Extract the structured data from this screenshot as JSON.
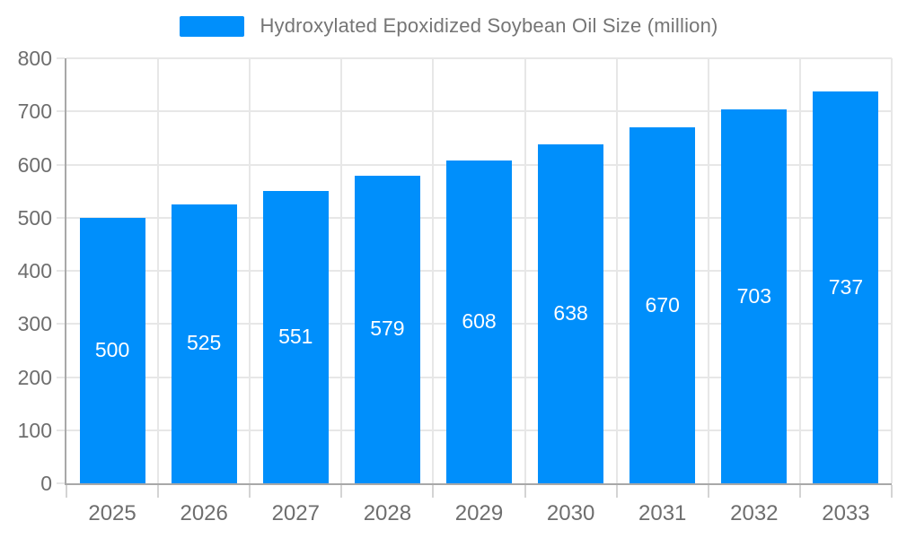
{
  "legend": {
    "series_label": "Hydroxylated Epoxidized Soybean Oil Size (million)",
    "swatch_color": "#008FFB"
  },
  "chart_data": {
    "type": "bar",
    "title": "Hydroxylated Epoxidized Soybean Oil Size (million)",
    "categories": [
      "2025",
      "2026",
      "2027",
      "2028",
      "2029",
      "2030",
      "2031",
      "2032",
      "2033"
    ],
    "values": [
      500,
      525,
      551,
      579,
      608,
      638,
      670,
      703,
      737
    ],
    "series": [
      {
        "name": "Hydroxylated Epoxidized Soybean Oil Size (million)",
        "values": [
          500,
          525,
          551,
          579,
          608,
          638,
          670,
          703,
          737
        ]
      }
    ],
    "xlabel": "",
    "ylabel": "",
    "ylim": [
      0,
      800
    ],
    "y_tick_step": 100,
    "y_tick_labels": [
      "0",
      "100",
      "200",
      "300",
      "400",
      "500",
      "600",
      "700",
      "800"
    ],
    "grid": true,
    "legend_position": "top",
    "data_labels": "inside-center",
    "colors": {
      "bar": "#008FFB",
      "data_label": "#ffffff",
      "axis_label": "#6e6e6e",
      "legend_label": "#757575",
      "gridline": "#e7e7e7",
      "axis_line": "#a8a8a8",
      "background": "#ffffff"
    }
  }
}
